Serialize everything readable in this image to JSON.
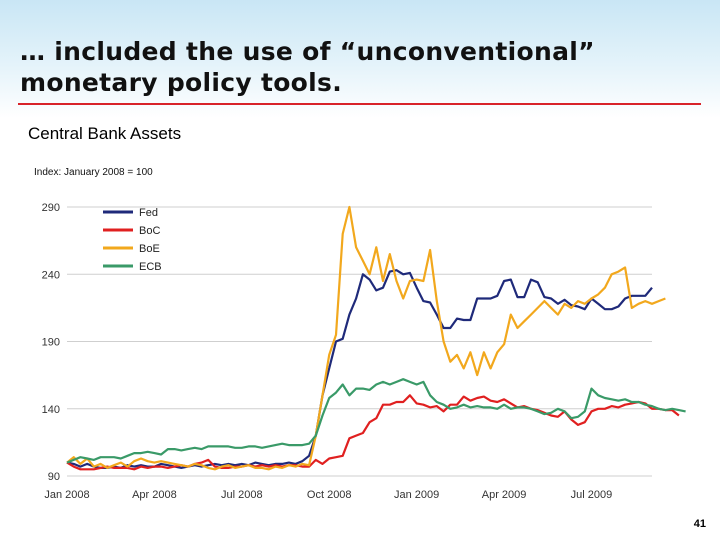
{
  "slide": {
    "title": "… included the use of “unconventional” monetary policy tools.",
    "page_number": "41"
  },
  "colors": {
    "title_rule": "#d8232a",
    "gridline": "#cfcfcf",
    "axis_text": "#333333"
  },
  "chart_data": {
    "type": "line",
    "title": "Central Bank Assets",
    "subtitle": "Index: January 2008 = 100",
    "xlabel": "",
    "ylabel": "",
    "ylim": [
      90,
      290
    ],
    "yticks": [
      90,
      140,
      190,
      240,
      290
    ],
    "grid": true,
    "legend_position": "top-left",
    "x_tick_labels": [
      "Jan 2008",
      "Apr 2008",
      "Jul 2008",
      "Oct 2008",
      "Jan 2009",
      "Apr 2009",
      "Jul 2009"
    ],
    "x_tick_week_index": [
      0,
      13,
      26,
      39,
      52,
      65,
      78
    ],
    "x_unit": "weeks since Jan 2008",
    "series": [
      {
        "name": "Fed",
        "color": "#1f2a7a",
        "values": [
          100,
          99,
          97,
          99,
          97,
          96,
          96,
          97,
          96,
          98,
          97,
          98,
          97,
          97,
          99,
          98,
          97,
          96,
          97,
          98,
          97,
          98,
          99,
          98,
          99,
          98,
          99,
          98,
          100,
          99,
          98,
          99,
          99,
          100,
          99,
          101,
          105,
          120,
          150,
          170,
          190,
          192,
          210,
          222,
          240,
          236,
          228,
          230,
          242,
          243,
          240,
          241,
          230,
          220,
          219,
          210,
          200,
          200,
          207,
          206,
          206,
          222,
          222,
          222,
          224,
          235,
          236,
          223,
          223,
          236,
          234,
          223,
          222,
          218,
          221,
          217,
          216,
          214,
          222,
          218,
          214,
          214,
          216,
          222,
          224,
          224,
          224,
          230
        ]
      },
      {
        "name": "BoC",
        "color": "#e02020",
        "values": [
          100,
          97,
          95,
          95,
          95,
          96,
          97,
          96,
          96,
          96,
          95,
          97,
          96,
          97,
          97,
          96,
          97,
          98,
          97,
          99,
          100,
          102,
          97,
          96,
          96,
          97,
          97,
          98,
          97,
          98,
          97,
          98,
          97,
          98,
          98,
          97,
          97,
          102,
          99,
          103,
          104,
          105,
          118,
          120,
          122,
          130,
          133,
          143,
          143,
          145,
          145,
          150,
          144,
          143,
          141,
          142,
          138,
          143,
          143,
          149,
          146,
          148,
          149,
          146,
          145,
          147,
          144,
          141,
          142,
          140,
          139,
          137,
          135,
          134,
          138,
          132,
          128,
          130,
          138,
          140,
          140,
          142,
          141,
          143,
          144,
          145,
          144,
          140,
          140,
          139,
          139,
          135
        ]
      },
      {
        "name": "BoE",
        "color": "#f2a81d",
        "values": [
          100,
          104,
          99,
          103,
          97,
          99,
          96,
          98,
          100,
          97,
          101,
          103,
          101,
          100,
          101,
          100,
          99,
          98,
          97,
          99,
          98,
          96,
          95,
          97,
          98,
          96,
          97,
          98,
          96,
          96,
          95,
          97,
          96,
          98,
          97,
          99,
          98,
          120,
          150,
          180,
          195,
          270,
          290,
          260,
          250,
          240,
          260,
          235,
          255,
          235,
          222,
          235,
          236,
          235,
          258,
          220,
          190,
          175,
          180,
          170,
          182,
          165,
          182,
          170,
          182,
          188,
          210,
          200,
          205,
          210,
          215,
          220,
          215,
          210,
          218,
          215,
          220,
          218,
          222,
          225,
          230,
          240,
          242,
          245,
          215,
          218,
          220,
          218,
          220,
          222
        ]
      },
      {
        "name": "ECB",
        "color": "#3a9a68",
        "values": [
          100,
          102,
          104,
          103,
          102,
          104,
          104,
          104,
          103,
          105,
          107,
          107,
          108,
          107,
          106,
          110,
          110,
          109,
          110,
          111,
          110,
          112,
          112,
          112,
          112,
          111,
          111,
          112,
          112,
          111,
          112,
          113,
          114,
          113,
          113,
          113,
          114,
          120,
          135,
          148,
          152,
          158,
          150,
          155,
          155,
          154,
          158,
          160,
          158,
          160,
          162,
          160,
          158,
          160,
          150,
          145,
          143,
          140,
          141,
          143,
          141,
          142,
          141,
          141,
          140,
          143,
          140,
          141,
          141,
          140,
          138,
          136,
          137,
          140,
          138,
          133,
          134,
          138,
          155,
          150,
          148,
          147,
          146,
          147,
          145,
          145,
          143,
          142,
          140,
          139,
          140,
          139,
          138
        ]
      }
    ]
  }
}
